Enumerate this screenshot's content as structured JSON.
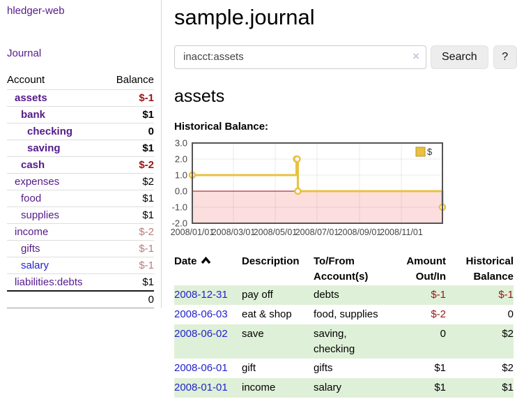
{
  "app": {
    "brand": "hledger-web",
    "nav_journal": "Journal"
  },
  "sidebar": {
    "accounts_header": {
      "account": "Account",
      "balance": "Balance"
    },
    "accounts": [
      {
        "name": "assets",
        "indent": 0,
        "bold": true,
        "balance": "$-1",
        "balance_style": "neg-strong"
      },
      {
        "name": "bank",
        "indent": 1,
        "bold": true,
        "balance": "$1",
        "balance_style": "normal"
      },
      {
        "name": "checking",
        "indent": 2,
        "bold": true,
        "balance": "0",
        "balance_style": "normal"
      },
      {
        "name": "saving",
        "indent": 2,
        "bold": true,
        "balance": "$1",
        "balance_style": "normal"
      },
      {
        "name": "cash",
        "indent": 1,
        "bold": true,
        "balance": "$-2",
        "balance_style": "neg-strong"
      },
      {
        "name": "expenses",
        "indent": 0,
        "bold": false,
        "balance": "$2",
        "balance_style": "normal"
      },
      {
        "name": "food",
        "indent": 1,
        "bold": false,
        "balance": "$1",
        "balance_style": "normal"
      },
      {
        "name": "supplies",
        "indent": 1,
        "bold": false,
        "balance": "$1",
        "balance_style": "normal"
      },
      {
        "name": "income",
        "indent": 0,
        "bold": false,
        "balance": "$-2",
        "balance_style": "neg-muted"
      },
      {
        "name": "gifts",
        "indent": 1,
        "bold": false,
        "balance": "$-1",
        "balance_style": "neg-muted"
      },
      {
        "name": "salary",
        "indent": 1,
        "bold": false,
        "balance": "$-1",
        "balance_style": "neg-muted",
        "link_style": "blue"
      },
      {
        "name": "liabilities:debts",
        "indent": 0,
        "bold": false,
        "balance": "$1",
        "balance_style": "normal"
      }
    ],
    "total": "0"
  },
  "header": {
    "title": "sample.journal"
  },
  "search": {
    "value": "inacct:assets",
    "clear_label": "×",
    "button": "Search",
    "help_button": "?"
  },
  "account_page": {
    "title": "assets",
    "chart_label": "Historical Balance:"
  },
  "chart_data": {
    "type": "line",
    "style": "step",
    "title": "Historical Balance",
    "xlim": [
      "2008-01-01",
      "2008-12-31"
    ],
    "ylim": [
      -2,
      3
    ],
    "x_ticks": [
      "2008/01/01",
      "2008/03/01",
      "2008/05/01",
      "2008/07/01",
      "2008/09/01",
      "2008/11/01"
    ],
    "y_ticks": [
      3.0,
      2.0,
      1.0,
      0.0,
      -1.0,
      -2.0
    ],
    "series": [
      {
        "name": "$",
        "color": "#e8c240",
        "points": [
          [
            "2008-01-01",
            1
          ],
          [
            "2008-06-01",
            2
          ],
          [
            "2008-06-02",
            2
          ],
          [
            "2008-06-03",
            0
          ],
          [
            "2008-12-31",
            -1
          ]
        ]
      }
    ],
    "legend": {
      "label": "$",
      "position": "top-right"
    },
    "grid": true,
    "negative_region_color": "#fcdede",
    "zero_line_color": "#aa0000",
    "border_color": "#545454"
  },
  "register": {
    "columns": [
      "Date",
      "Description",
      "To/From Account(s)",
      "Amount Out/In",
      "Historical Balance"
    ],
    "sort_column": "Date",
    "sort_direction": "ascending",
    "rows": [
      {
        "date": "2008-12-31",
        "description": "pay off",
        "accounts": "debts",
        "amount": "$-1",
        "amount_negative": true,
        "balance": "$-1",
        "balance_negative": true
      },
      {
        "date": "2008-06-03",
        "description": "eat & shop",
        "accounts": "food, supplies",
        "amount": "$-2",
        "amount_negative": true,
        "balance": "0",
        "balance_negative": false
      },
      {
        "date": "2008-06-02",
        "description": "save",
        "accounts": "saving, checking",
        "amount": "0",
        "amount_negative": false,
        "balance": "$2",
        "balance_negative": false
      },
      {
        "date": "2008-06-01",
        "description": "gift",
        "accounts": "gifts",
        "amount": "$1",
        "amount_negative": false,
        "balance": "$2",
        "balance_negative": false
      },
      {
        "date": "2008-01-01",
        "description": "income",
        "accounts": "salary",
        "amount": "$1",
        "amount_negative": false,
        "balance": "$1",
        "balance_negative": false
      }
    ]
  },
  "colors": {
    "link_purple": "#551a8b",
    "link_blue": "#2222cc",
    "negative_strong": "#9d1414",
    "negative_muted": "#b97c7c",
    "row_stripe_green": "#dff0d8",
    "series_gold": "#e8c240",
    "chart_negative_bg": "#fcdede",
    "zero_line_red": "#aa0000",
    "button_bg": "#ededed"
  }
}
